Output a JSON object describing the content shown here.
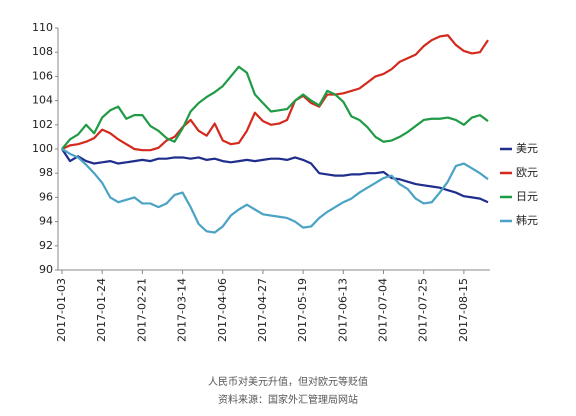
{
  "chart_data": {
    "type": "line",
    "caption": "人民币对美元升值，但对欧元等贬值",
    "source": "资料来源：国家外汇管理局网站",
    "categories": [
      "2017-01-03",
      null,
      null,
      null,
      null,
      "2017-01-24",
      null,
      null,
      null,
      null,
      "2017-02-21",
      null,
      null,
      null,
      null,
      "2017-03-14",
      null,
      null,
      null,
      null,
      "2017-04-06",
      null,
      null,
      null,
      null,
      "2017-04-27",
      null,
      null,
      null,
      null,
      "2017-05-19",
      null,
      null,
      null,
      null,
      "2017-06-13",
      null,
      null,
      null,
      null,
      "2017-07-04",
      null,
      null,
      null,
      null,
      "2017-07-25",
      null,
      null,
      null,
      null,
      "2017-08-15",
      null,
      null,
      null
    ],
    "series": [
      {
        "name": "美元",
        "color": "#1f2d8c",
        "values": [
          100,
          99,
          99.4,
          99,
          98.8,
          98.9,
          99,
          98.8,
          98.9,
          99,
          99.1,
          99,
          99.2,
          99.2,
          99.3,
          99.3,
          99.2,
          99.3,
          99.1,
          99.2,
          99,
          98.9,
          99,
          99.1,
          99,
          99.1,
          99.2,
          99.2,
          99.1,
          99.3,
          99.1,
          98.8,
          98,
          97.9,
          97.8,
          97.8,
          97.9,
          97.9,
          98,
          98,
          98.1,
          97.6,
          97.5,
          97.3,
          97.1,
          97,
          96.9,
          96.8,
          96.6,
          96.4,
          96.1,
          96,
          95.9,
          95.6
        ]
      },
      {
        "name": "欧元",
        "color": "#d42a1e",
        "values": [
          100,
          100.3,
          100.4,
          100.6,
          100.9,
          101.6,
          101.3,
          100.8,
          100.4,
          100,
          99.9,
          99.9,
          100.1,
          100.7,
          101,
          101.8,
          102.4,
          101.5,
          101.1,
          102.1,
          100.7,
          100.4,
          100.5,
          101.5,
          103,
          102.3,
          102,
          102.1,
          102.4,
          104,
          104.4,
          103.8,
          103.5,
          104.5,
          104.5,
          104.6,
          104.8,
          105,
          105.5,
          106,
          106.2,
          106.6,
          107.2,
          107.5,
          107.8,
          108.5,
          109,
          109.3,
          109.4,
          108.6,
          108.1,
          107.9,
          108,
          109
        ]
      },
      {
        "name": "日元",
        "color": "#1f9b45",
        "values": [
          100,
          100.8,
          101.2,
          102,
          101.3,
          102.6,
          103.2,
          103.5,
          102.5,
          102.8,
          102.8,
          101.9,
          101.5,
          100.9,
          100.6,
          101.7,
          103.1,
          103.8,
          104.3,
          104.7,
          105.2,
          106,
          106.8,
          106.3,
          104.5,
          103.8,
          103.1,
          103.2,
          103.3,
          104,
          104.5,
          104,
          103.6,
          104.8,
          104.5,
          103.9,
          102.7,
          102.4,
          101.8,
          101,
          100.6,
          100.7,
          101,
          101.4,
          101.9,
          102.4,
          102.5,
          102.5,
          102.6,
          102.4,
          102,
          102.6,
          102.8,
          102.3
        ]
      },
      {
        "name": "韩元",
        "color": "#4aa3c4",
        "values": [
          100,
          99.6,
          99.3,
          98.7,
          98,
          97.2,
          96,
          95.6,
          95.8,
          96,
          95.5,
          95.5,
          95.2,
          95.5,
          96.2,
          96.4,
          95.2,
          93.8,
          93.2,
          93.1,
          93.6,
          94.5,
          95,
          95.4,
          95,
          94.6,
          94.5,
          94.4,
          94.3,
          94,
          93.5,
          93.6,
          94.3,
          94.8,
          95.2,
          95.6,
          95.9,
          96.4,
          96.8,
          97.2,
          97.6,
          97.8,
          97.1,
          96.7,
          95.9,
          95.5,
          95.6,
          96.4,
          97.3,
          98.6,
          98.8,
          98.4,
          98,
          97.5
        ]
      }
    ],
    "ylim": [
      90,
      110
    ],
    "yticks": [
      90,
      92,
      94,
      96,
      98,
      100,
      102,
      104,
      106,
      108,
      110
    ],
    "grid": false,
    "legend": "right"
  }
}
